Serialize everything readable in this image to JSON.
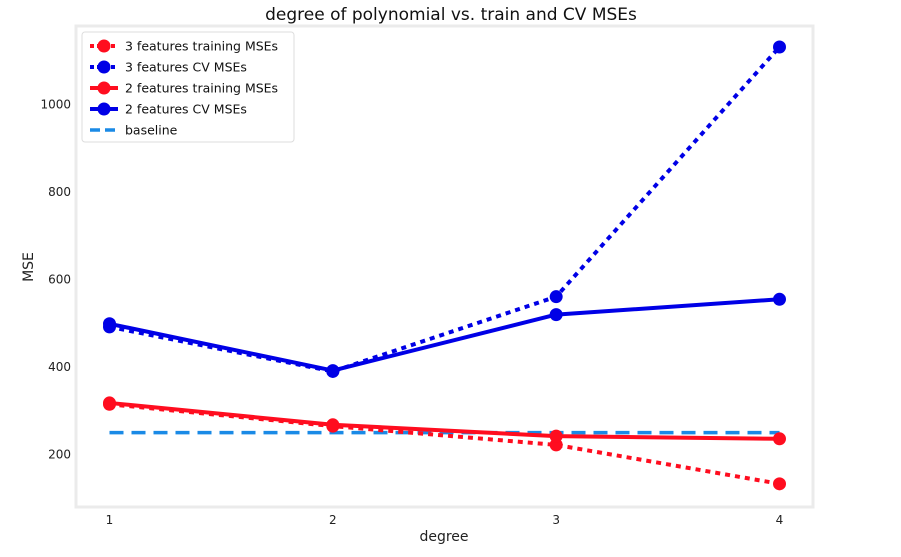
{
  "chart_data": {
    "type": "line",
    "title": "degree of polynomial vs. train and CV MSEs",
    "xlabel": "degree",
    "ylabel": "MSE",
    "x": [
      1,
      2,
      3,
      4
    ],
    "xlim": [
      0.85,
      4.15
    ],
    "ylim": [
      80,
      1180
    ],
    "xticks": [
      1,
      2,
      3,
      4
    ],
    "yticks": [
      200,
      400,
      600,
      800,
      1000
    ],
    "grid": false,
    "legend_position": "upper-left",
    "series": [
      {
        "name": "3 features training MSEs",
        "color": "#ff0d1f",
        "style": "dotted",
        "marker": "circle",
        "values": [
          315,
          265,
          222,
          133
        ]
      },
      {
        "name": "3 features CV MSEs",
        "color": "#0000e6",
        "style": "dotted",
        "marker": "circle",
        "values": [
          492,
          390,
          561,
          1132
        ]
      },
      {
        "name": "2 features training MSEs",
        "color": "#ff0d1f",
        "style": "solid",
        "marker": "circle",
        "values": [
          318,
          268,
          242,
          236
        ]
      },
      {
        "name": "2 features CV MSEs",
        "color": "#0000e6",
        "style": "solid",
        "marker": "circle",
        "values": [
          499,
          392,
          520,
          555
        ]
      },
      {
        "name": "baseline",
        "color": "#1a8ae6",
        "style": "dashed",
        "marker": "none",
        "values": [
          250,
          250,
          250,
          250
        ]
      }
    ]
  }
}
